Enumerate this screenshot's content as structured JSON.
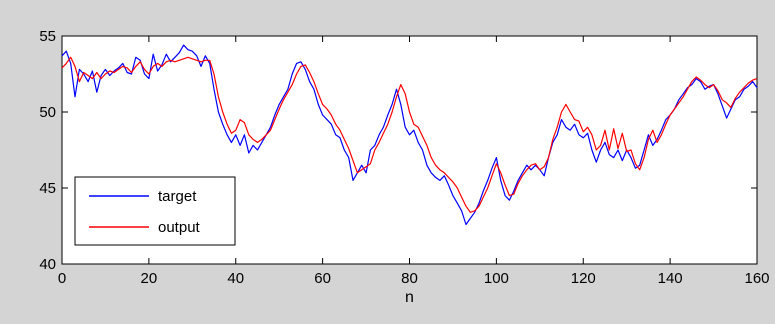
{
  "chart_data": {
    "type": "line",
    "title": "",
    "xlabel": "n",
    "ylabel": "",
    "xlim": [
      0,
      160
    ],
    "ylim": [
      40,
      55
    ],
    "xticks": [
      "0",
      "20",
      "40",
      "60",
      "80",
      "100",
      "120",
      "140",
      "160"
    ],
    "yticks": [
      "40",
      "45",
      "50",
      "55"
    ],
    "grid": false,
    "legend_position": "bottom-left",
    "colors": {
      "target": "#0000ff",
      "output": "#ff0000",
      "background": "#d4d4d4",
      "plot_area": "#ffffff"
    },
    "series": [
      {
        "name": "target",
        "points": [
          [
            0,
            53.7
          ],
          [
            1,
            54.0
          ],
          [
            2,
            53.2
          ],
          [
            3,
            51.0
          ],
          [
            4,
            52.8
          ],
          [
            5,
            52.5
          ],
          [
            6,
            52.0
          ],
          [
            7,
            52.7
          ],
          [
            8,
            51.3
          ],
          [
            9,
            52.4
          ],
          [
            10,
            52.8
          ],
          [
            11,
            52.4
          ],
          [
            12,
            52.7
          ],
          [
            13,
            52.9
          ],
          [
            14,
            53.2
          ],
          [
            15,
            52.6
          ],
          [
            16,
            52.5
          ],
          [
            17,
            53.6
          ],
          [
            18,
            53.4
          ],
          [
            19,
            52.5
          ],
          [
            20,
            52.2
          ],
          [
            21,
            53.8
          ],
          [
            22,
            52.7
          ],
          [
            23,
            53.1
          ],
          [
            24,
            53.8
          ],
          [
            25,
            53.3
          ],
          [
            26,
            53.6
          ],
          [
            27,
            53.9
          ],
          [
            28,
            54.4
          ],
          [
            29,
            54.1
          ],
          [
            30,
            54.0
          ],
          [
            31,
            53.7
          ],
          [
            32,
            53.0
          ],
          [
            33,
            53.7
          ],
          [
            34,
            53.2
          ],
          [
            35,
            51.5
          ],
          [
            36,
            50.0
          ],
          [
            37,
            49.2
          ],
          [
            38,
            48.5
          ],
          [
            39,
            48.0
          ],
          [
            40,
            48.5
          ],
          [
            41,
            47.8
          ],
          [
            42,
            48.5
          ],
          [
            43,
            47.3
          ],
          [
            44,
            47.8
          ],
          [
            45,
            47.5
          ],
          [
            46,
            48.0
          ],
          [
            47,
            48.5
          ],
          [
            48,
            49.0
          ],
          [
            49,
            49.8
          ],
          [
            50,
            50.5
          ],
          [
            51,
            51.0
          ],
          [
            52,
            51.5
          ],
          [
            53,
            52.5
          ],
          [
            54,
            53.2
          ],
          [
            55,
            53.3
          ],
          [
            56,
            52.8
          ],
          [
            57,
            52.0
          ],
          [
            58,
            51.5
          ],
          [
            59,
            50.5
          ],
          [
            60,
            49.8
          ],
          [
            61,
            49.5
          ],
          [
            62,
            49.2
          ],
          [
            63,
            48.5
          ],
          [
            64,
            48.3
          ],
          [
            65,
            47.5
          ],
          [
            66,
            47.0
          ],
          [
            67,
            45.5
          ],
          [
            68,
            46.0
          ],
          [
            69,
            46.5
          ],
          [
            70,
            46.0
          ],
          [
            71,
            47.5
          ],
          [
            72,
            47.8
          ],
          [
            73,
            48.5
          ],
          [
            74,
            49.0
          ],
          [
            75,
            49.8
          ],
          [
            76,
            50.5
          ],
          [
            77,
            51.5
          ],
          [
            78,
            50.5
          ],
          [
            79,
            49.0
          ],
          [
            80,
            48.5
          ],
          [
            81,
            48.8
          ],
          [
            82,
            48.0
          ],
          [
            83,
            47.5
          ],
          [
            84,
            46.5
          ],
          [
            85,
            46.0
          ],
          [
            86,
            45.7
          ],
          [
            87,
            45.5
          ],
          [
            88,
            45.8
          ],
          [
            89,
            45.2
          ],
          [
            90,
            44.5
          ],
          [
            91,
            44.0
          ],
          [
            92,
            43.5
          ],
          [
            93,
            42.6
          ],
          [
            94,
            43.0
          ],
          [
            95,
            43.4
          ],
          [
            96,
            44.0
          ],
          [
            97,
            44.8
          ],
          [
            98,
            45.5
          ],
          [
            99,
            46.3
          ],
          [
            100,
            47.0
          ],
          [
            101,
            45.5
          ],
          [
            102,
            44.5
          ],
          [
            103,
            44.2
          ],
          [
            104,
            44.8
          ],
          [
            105,
            45.5
          ],
          [
            106,
            46.0
          ],
          [
            107,
            46.5
          ],
          [
            108,
            46.2
          ],
          [
            109,
            46.5
          ],
          [
            110,
            46.2
          ],
          [
            111,
            45.8
          ],
          [
            112,
            47.0
          ],
          [
            113,
            48.0
          ],
          [
            114,
            48.5
          ],
          [
            115,
            49.5
          ],
          [
            116,
            49.0
          ],
          [
            117,
            48.8
          ],
          [
            118,
            49.2
          ],
          [
            119,
            48.5
          ],
          [
            120,
            48.3
          ],
          [
            121,
            48.6
          ],
          [
            122,
            47.5
          ],
          [
            123,
            46.7
          ],
          [
            124,
            47.5
          ],
          [
            125,
            48.0
          ],
          [
            126,
            47.2
          ],
          [
            127,
            47.0
          ],
          [
            128,
            47.5
          ],
          [
            129,
            46.8
          ],
          [
            130,
            47.5
          ],
          [
            131,
            47.0
          ],
          [
            132,
            46.3
          ],
          [
            133,
            46.5
          ],
          [
            134,
            47.5
          ],
          [
            135,
            48.5
          ],
          [
            136,
            47.8
          ],
          [
            137,
            48.2
          ],
          [
            138,
            48.8
          ],
          [
            139,
            49.5
          ],
          [
            140,
            49.8
          ],
          [
            141,
            50.2
          ],
          [
            142,
            50.8
          ],
          [
            143,
            51.2
          ],
          [
            144,
            51.6
          ],
          [
            145,
            51.8
          ],
          [
            146,
            52.2
          ],
          [
            147,
            52.0
          ],
          [
            148,
            51.5
          ],
          [
            149,
            51.7
          ],
          [
            150,
            51.8
          ],
          [
            151,
            51.2
          ],
          [
            152,
            50.4
          ],
          [
            153,
            49.6
          ],
          [
            154,
            50.2
          ],
          [
            155,
            50.8
          ],
          [
            156,
            51.0
          ],
          [
            157,
            51.5
          ],
          [
            158,
            51.7
          ],
          [
            159,
            52.0
          ],
          [
            160,
            51.6
          ]
        ]
      },
      {
        "name": "output",
        "points": [
          [
            0,
            52.9
          ],
          [
            1,
            53.2
          ],
          [
            2,
            53.6
          ],
          [
            3,
            53.0
          ],
          [
            4,
            52.0
          ],
          [
            5,
            52.6
          ],
          [
            6,
            52.4
          ],
          [
            7,
            52.2
          ],
          [
            8,
            52.6
          ],
          [
            9,
            52.2
          ],
          [
            10,
            52.5
          ],
          [
            11,
            52.7
          ],
          [
            12,
            52.6
          ],
          [
            13,
            52.8
          ],
          [
            14,
            53.0
          ],
          [
            15,
            52.9
          ],
          [
            16,
            52.6
          ],
          [
            17,
            53.0
          ],
          [
            18,
            53.3
          ],
          [
            19,
            52.8
          ],
          [
            20,
            52.5
          ],
          [
            21,
            53.0
          ],
          [
            22,
            53.2
          ],
          [
            23,
            53.0
          ],
          [
            24,
            53.3
          ],
          [
            25,
            53.4
          ],
          [
            26,
            53.3
          ],
          [
            27,
            53.4
          ],
          [
            28,
            53.5
          ],
          [
            29,
            53.6
          ],
          [
            30,
            53.5
          ],
          [
            31,
            53.4
          ],
          [
            32,
            53.3
          ],
          [
            33,
            53.4
          ],
          [
            34,
            53.4
          ],
          [
            35,
            52.5
          ],
          [
            36,
            51.0
          ],
          [
            37,
            50.0
          ],
          [
            38,
            49.2
          ],
          [
            39,
            48.6
          ],
          [
            40,
            48.8
          ],
          [
            41,
            49.5
          ],
          [
            42,
            49.3
          ],
          [
            43,
            48.5
          ],
          [
            44,
            48.2
          ],
          [
            45,
            48.0
          ],
          [
            46,
            48.2
          ],
          [
            47,
            48.5
          ],
          [
            48,
            48.8
          ],
          [
            49,
            49.5
          ],
          [
            50,
            50.2
          ],
          [
            51,
            50.8
          ],
          [
            52,
            51.3
          ],
          [
            53,
            51.8
          ],
          [
            54,
            52.5
          ],
          [
            55,
            53.0
          ],
          [
            56,
            53.1
          ],
          [
            57,
            52.6
          ],
          [
            58,
            52.0
          ],
          [
            59,
            51.2
          ],
          [
            60,
            50.5
          ],
          [
            61,
            50.2
          ],
          [
            62,
            49.8
          ],
          [
            63,
            49.2
          ],
          [
            64,
            48.8
          ],
          [
            65,
            48.2
          ],
          [
            66,
            47.6
          ],
          [
            67,
            46.8
          ],
          [
            68,
            46.0
          ],
          [
            69,
            46.2
          ],
          [
            70,
            46.4
          ],
          [
            71,
            46.6
          ],
          [
            72,
            47.5
          ],
          [
            73,
            48.0
          ],
          [
            74,
            48.6
          ],
          [
            75,
            49.2
          ],
          [
            76,
            50.0
          ],
          [
            77,
            51.0
          ],
          [
            78,
            51.8
          ],
          [
            79,
            51.2
          ],
          [
            80,
            50.0
          ],
          [
            81,
            49.2
          ],
          [
            82,
            49.0
          ],
          [
            83,
            48.4
          ],
          [
            84,
            47.8
          ],
          [
            85,
            47.0
          ],
          [
            86,
            46.5
          ],
          [
            87,
            46.2
          ],
          [
            88,
            46.0
          ],
          [
            89,
            45.7
          ],
          [
            90,
            45.4
          ],
          [
            91,
            45.0
          ],
          [
            92,
            44.4
          ],
          [
            93,
            43.8
          ],
          [
            94,
            43.4
          ],
          [
            95,
            43.5
          ],
          [
            96,
            43.8
          ],
          [
            97,
            44.4
          ],
          [
            98,
            45.0
          ],
          [
            99,
            45.8
          ],
          [
            100,
            46.6
          ],
          [
            101,
            46.0
          ],
          [
            102,
            45.2
          ],
          [
            103,
            44.5
          ],
          [
            104,
            44.6
          ],
          [
            105,
            45.3
          ],
          [
            106,
            45.8
          ],
          [
            107,
            46.2
          ],
          [
            108,
            46.5
          ],
          [
            109,
            46.6
          ],
          [
            110,
            46.2
          ],
          [
            111,
            46.4
          ],
          [
            112,
            47.0
          ],
          [
            113,
            48.2
          ],
          [
            114,
            49.0
          ],
          [
            115,
            50.0
          ],
          [
            116,
            50.5
          ],
          [
            117,
            50.0
          ],
          [
            118,
            49.5
          ],
          [
            119,
            49.4
          ],
          [
            120,
            48.7
          ],
          [
            121,
            49.0
          ],
          [
            122,
            48.5
          ],
          [
            123,
            47.5
          ],
          [
            124,
            47.8
          ],
          [
            125,
            48.8
          ],
          [
            126,
            47.5
          ],
          [
            127,
            48.9
          ],
          [
            128,
            47.6
          ],
          [
            129,
            48.6
          ],
          [
            130,
            47.4
          ],
          [
            131,
            47.5
          ],
          [
            132,
            46.6
          ],
          [
            133,
            46.2
          ],
          [
            134,
            47.0
          ],
          [
            135,
            48.2
          ],
          [
            136,
            48.8
          ],
          [
            137,
            48.0
          ],
          [
            138,
            48.5
          ],
          [
            139,
            49.2
          ],
          [
            140,
            49.8
          ],
          [
            141,
            50.2
          ],
          [
            142,
            50.6
          ],
          [
            143,
            51.0
          ],
          [
            144,
            51.5
          ],
          [
            145,
            52.0
          ],
          [
            146,
            52.3
          ],
          [
            147,
            52.1
          ],
          [
            148,
            51.8
          ],
          [
            149,
            51.6
          ],
          [
            150,
            51.8
          ],
          [
            151,
            51.4
          ],
          [
            152,
            50.8
          ],
          [
            153,
            50.6
          ],
          [
            154,
            50.3
          ],
          [
            155,
            50.9
          ],
          [
            156,
            51.3
          ],
          [
            157,
            51.6
          ],
          [
            158,
            51.9
          ],
          [
            159,
            52.1
          ],
          [
            160,
            52.2
          ]
        ]
      }
    ]
  }
}
